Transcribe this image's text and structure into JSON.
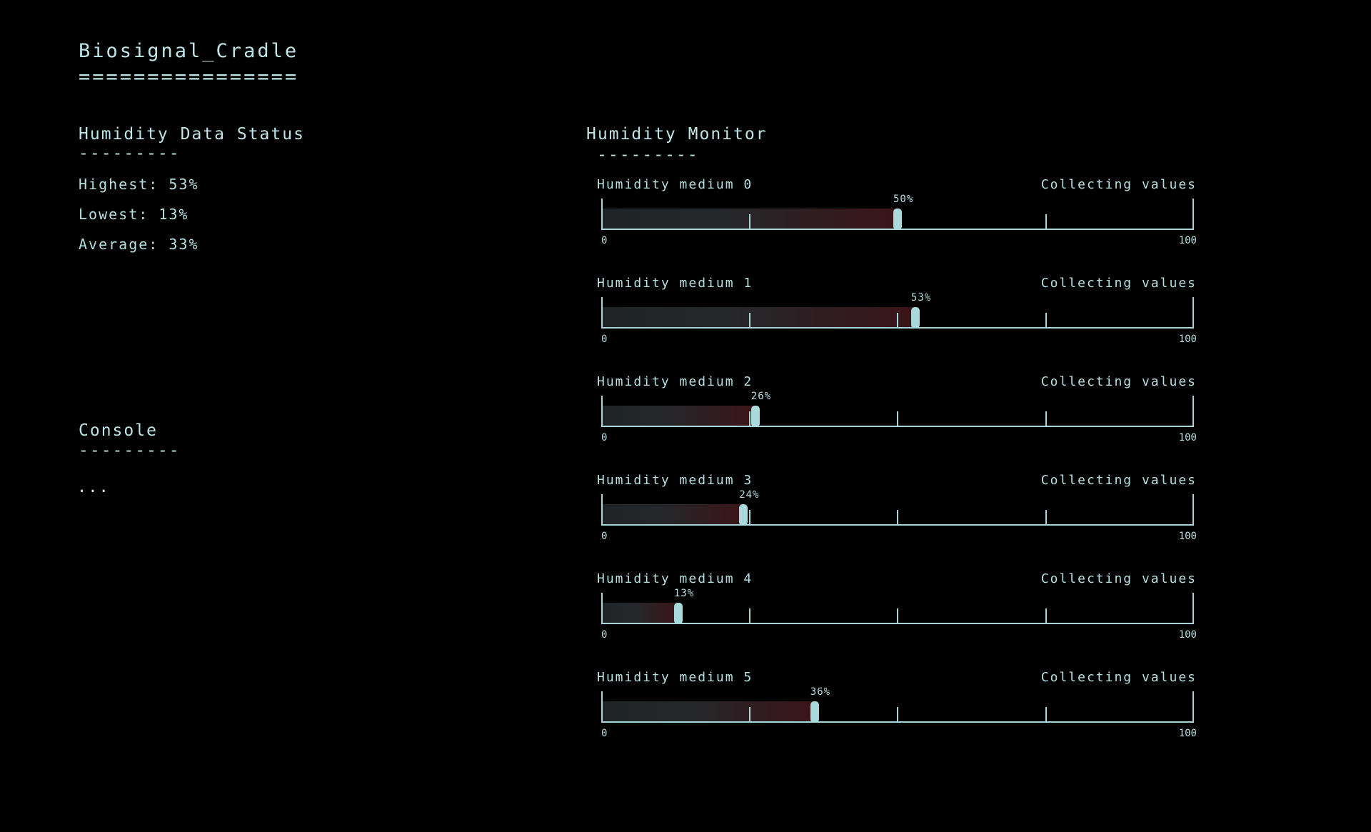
{
  "app": {
    "title": "Biosignal_Cradle",
    "title_underline": "================"
  },
  "status": {
    "title": "Humidity Data Status",
    "rule": "---------",
    "highest": "Highest: 53%",
    "lowest": "Lowest: 13%",
    "average": "Average: 33%"
  },
  "console": {
    "title": "Console",
    "rule": "---------",
    "text": "..."
  },
  "monitor": {
    "title": "Humidity Monitor",
    "rule": "---------",
    "min_label": "0",
    "max_label": "100",
    "items": [
      {
        "label": "Humidity medium 0",
        "status": "Collecting values",
        "value": 50,
        "value_label": "50%"
      },
      {
        "label": "Humidity medium 1",
        "status": "Collecting values",
        "value": 53,
        "value_label": "53%"
      },
      {
        "label": "Humidity medium 2",
        "status": "Collecting values",
        "value": 26,
        "value_label": "26%"
      },
      {
        "label": "Humidity medium 3",
        "status": "Collecting values",
        "value": 24,
        "value_label": "24%"
      },
      {
        "label": "Humidity medium 4",
        "status": "Collecting values",
        "value": 13,
        "value_label": "13%"
      },
      {
        "label": "Humidity medium 5",
        "status": "Collecting values",
        "value": 36,
        "value_label": "36%"
      }
    ]
  },
  "colors": {
    "background": "#000000",
    "text": "#b8dfe0",
    "accent": "#a8dadc",
    "fill_warm": "#3a1418"
  }
}
